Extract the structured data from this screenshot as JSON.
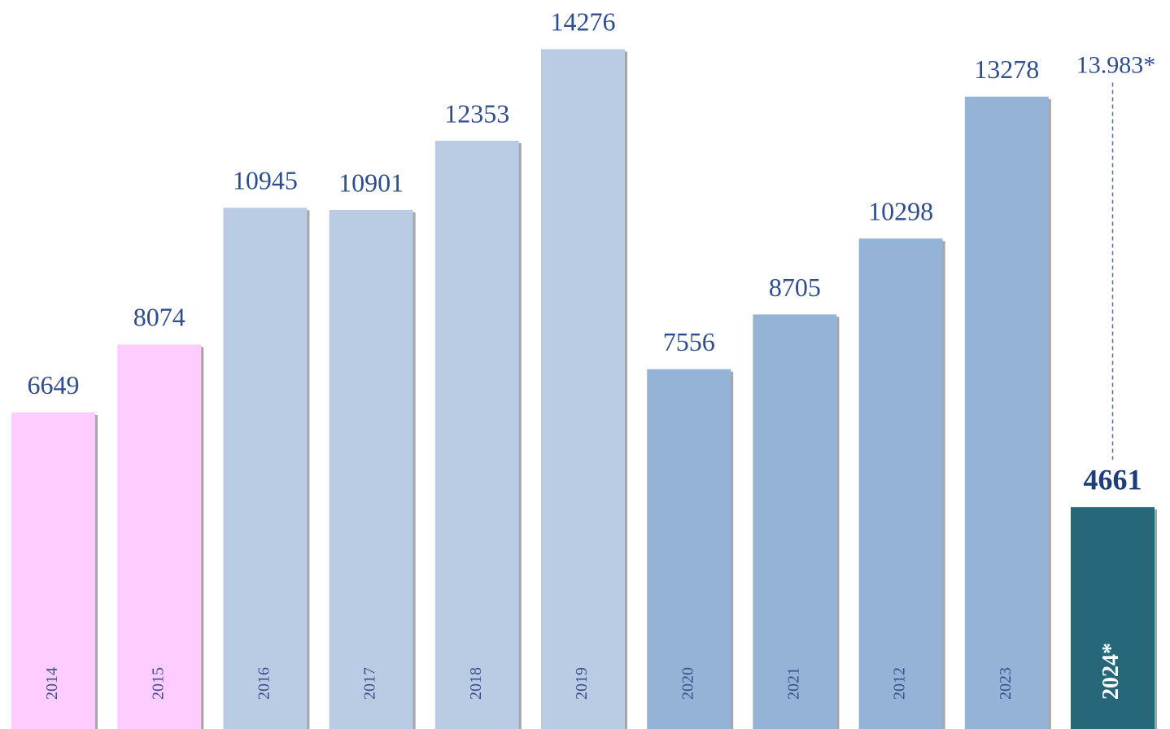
{
  "chart_data": {
    "type": "bar",
    "categories": [
      "2014",
      "2015",
      "2016",
      "2017",
      "2018",
      "2019",
      "2020",
      "2021",
      "2012",
      "2023",
      "2024*"
    ],
    "values": [
      6649,
      8074,
      10945,
      10901,
      12353,
      14276,
      7556,
      8705,
      10298,
      13278,
      4661
    ],
    "colors": [
      "#ffccff",
      "#ffccff",
      "#b9cce4",
      "#b9cce4",
      "#b9cce4",
      "#b9cce4",
      "#95b3d7",
      "#95b3d7",
      "#95b3d7",
      "#95b3d7",
      "#26677a"
    ],
    "projection": {
      "value": 13983,
      "label": "13.983*"
    },
    "ylim": [
      0,
      15000
    ]
  }
}
